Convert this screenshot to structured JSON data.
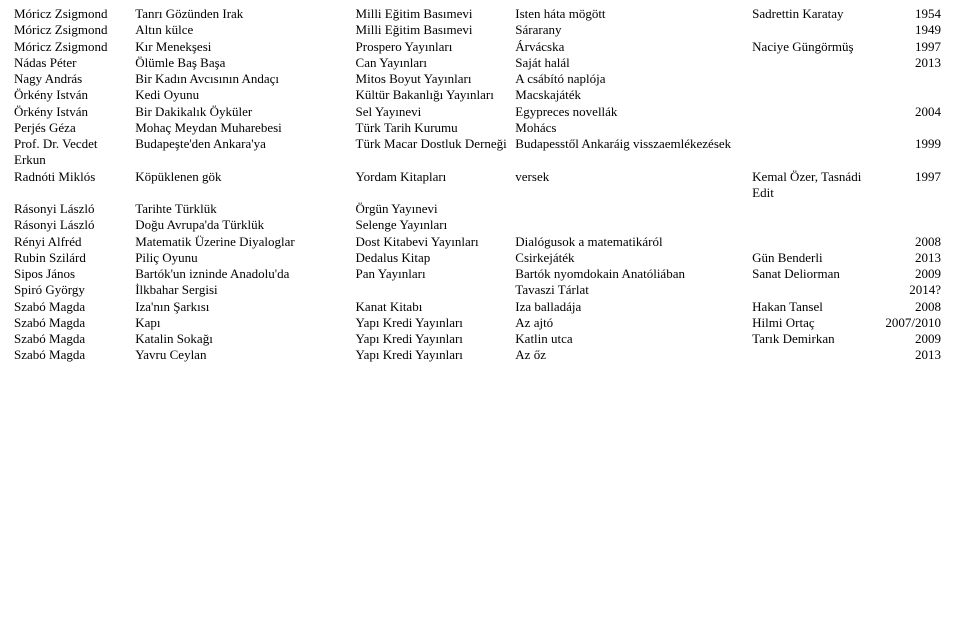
{
  "rows": [
    {
      "c1": "Móricz Zsigmond",
      "c2": "Tanrı Gözünden Irak",
      "c3": "Milli Eğitim Basımevi",
      "c4": "Isten háta mögött",
      "c5": "Sadrettin Karatay",
      "c6": "1954"
    },
    {
      "c1": "Móricz Zsigmond",
      "c2": "Altın külce",
      "c3": "Milli Eğitim Basımevi",
      "c4": "Sárarany",
      "c5": "",
      "c6": "1949"
    },
    {
      "c1": "Móricz Zsigmond",
      "c2": "Kır Menekşesi",
      "c3": "Prospero Yayınları",
      "c4": "Árvácska",
      "c5": "Naciye Güngörmüş",
      "c6": "1997"
    },
    {
      "c1": "Nádas Péter",
      "c2": "Ölümle Baş Başa",
      "c3": "Can Yayınları",
      "c4": "Saját halál",
      "c5": "",
      "c6": "2013"
    },
    {
      "c1": "Nagy András",
      "c2": "Bir Kadın Avcısının Andaçı",
      "c3": "Mitos Boyut Yayınları",
      "c4": "A csábító naplója",
      "c5": "",
      "c6": ""
    },
    {
      "c1": "Örkény István",
      "c2": "Kedi Oyunu",
      "c3": "Kültür Bakanlığı Yayınları",
      "c4": "Macskajáték",
      "c5": "",
      "c6": ""
    },
    {
      "c1": "Örkény István",
      "c2": "Bir Dakikalık Öyküler",
      "c3": "Sel Yayınevi",
      "c4": "Egypreces novellák",
      "c5": "",
      "c6": "2004"
    },
    {
      "c1": "Perjés Géza",
      "c2": "Mohaç Meydan Muharebesi",
      "c3": "Türk Tarih Kurumu",
      "c4": "Mohács",
      "c5": "",
      "c6": ""
    },
    {
      "c1": "Prof. Dr. Vecdet Erkun",
      "c2": "Budapeşte'den Ankara'ya",
      "c3": "Türk Macar Dostluk Derneği",
      "c4": "Budapesstől Ankaráig visszaemlékezések",
      "c5": "",
      "c6": "1999"
    },
    {
      "c1": "Radnóti Miklós",
      "c2": "Köpüklenen gök",
      "c3": "Yordam Kitapları",
      "c4": "versek",
      "c5": "Kemal Özer, Tasnádi Edit",
      "c6": "1997"
    },
    {
      "c1": "Rásonyi László",
      "c2": "Tarihte Türklük",
      "c3": "Örgün Yayınevi",
      "c4": "",
      "c5": "",
      "c6": ""
    },
    {
      "c1": "Rásonyi László",
      "c2": "Doğu Avrupa'da Türklük",
      "c3": "Selenge Yayınları",
      "c4": "",
      "c5": "",
      "c6": ""
    },
    {
      "c1": "Rényi Alfréd",
      "c2": "Matematik Üzerine Diyaloglar",
      "c3": "Dost Kitabevi Yayınları",
      "c4": "Dialógusok a matematikáról",
      "c5": "",
      "c6": "2008"
    },
    {
      "c1": "Rubin Szilárd",
      "c2": "Piliç Oyunu",
      "c3": "Dedalus Kitap",
      "c4": "Csirkejáték",
      "c5": "Gün Benderli",
      "c6": "2013"
    },
    {
      "c1": "Sipos János",
      "c2": "Bartók'un izninde Anadolu'da",
      "c3": "Pan Yayınları",
      "c4": "Bartók nyomdokain Anatóliában",
      "c5": "Sanat Deliorman",
      "c6": "2009"
    },
    {
      "c1": "Spiró György",
      "c2": "İlkbahar Sergisi",
      "c3": "",
      "c4": "Tavaszi Tárlat",
      "c5": "",
      "c6": "2014?"
    },
    {
      "c1": "Szabó Magda",
      "c2": "Iza'nın Şarkısı",
      "c3": "Kanat Kitabı",
      "c4": "Iza balladája",
      "c5": "Hakan Tansel",
      "c6": "2008"
    },
    {
      "c1": "Szabó Magda",
      "c2": "Kapı",
      "c3": "Yapı Kredi Yayınları",
      "c4": "Az ajtó",
      "c5": "Hilmi Ortaç",
      "c6": "2007/2010"
    },
    {
      "c1": "Szabó Magda",
      "c2": "Katalin Sokağı",
      "c3": "Yapı Kredi Yayınları",
      "c4": "Katlin utca",
      "c5": "Tarık Demirkan",
      "c6": "2009"
    },
    {
      "c1": "Szabó Magda",
      "c2": "Yavru Ceylan",
      "c3": "Yapı Kredi Yayınları",
      "c4": "Az őz",
      "c5": "",
      "c6": "2013"
    }
  ]
}
